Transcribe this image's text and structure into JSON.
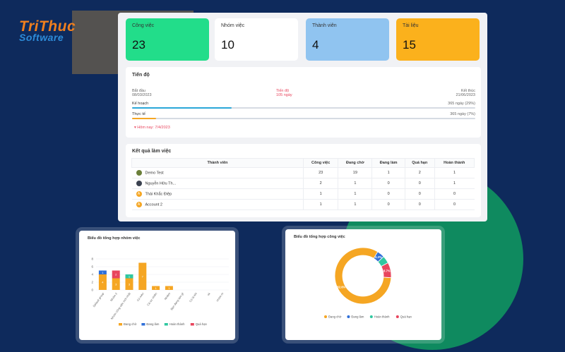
{
  "brand": {
    "line1": "TriThuc",
    "line2": "Software"
  },
  "stats": [
    {
      "label": "Công việc",
      "value": "23",
      "color": "#22dd8a"
    },
    {
      "label": "Nhóm việc",
      "value": "10",
      "color": "#ffffff"
    },
    {
      "label": "Thành viên",
      "value": "4",
      "color": "#90c4f0"
    },
    {
      "label": "Tài liệu",
      "value": "15",
      "color": "#fbb11c"
    }
  ],
  "progress": {
    "title": "Tiến độ",
    "start_label": "Bắt đầu",
    "start_date": "08/03/2023",
    "mid_label": "Tiến độ",
    "mid_value": "105 ngày",
    "end_label": "Kết thúc",
    "end_date": "21/06/2023",
    "plan_label": "Kế hoạch",
    "plan_value": "365 ngày (29%)",
    "plan_fraction": 0.29,
    "actual_label": "Thực tế",
    "actual_value": "365 ngày (7%)",
    "actual_fraction": 0.07,
    "today": "Hôm nay: 7/4/2023",
    "plan_color": "#2aa7d8",
    "actual_color": "#f5a623"
  },
  "results": {
    "title": "Kết quả làm việc",
    "headers": [
      "Thành viên",
      "Công việc",
      "Đang chờ",
      "Đang làm",
      "Quá hạn",
      "Hoàn thành"
    ],
    "rows": [
      {
        "name": "Demo Test",
        "cells": [
          "23",
          "19",
          "1",
          "2",
          "1"
        ]
      },
      {
        "name": "Nguyễn Hữu Th...",
        "cells": [
          "2",
          "1",
          "0",
          "0",
          "1"
        ]
      },
      {
        "name": "Thái Khắc Điệp",
        "cells": [
          "1",
          "1",
          "0",
          "0",
          "0"
        ]
      },
      {
        "name": "Account 2",
        "cells": [
          "1",
          "1",
          "0",
          "0",
          "0"
        ]
      }
    ]
  },
  "bar_chart_title": "Biểu đồ tổng hợp nhóm việc",
  "donut_chart_title": "Biểu đồ tổng hợp công việc",
  "chart_data": [
    {
      "type": "bar",
      "title": "Biểu đồ tổng hợp nhóm việc",
      "categories": [
        "Default group",
        "Nhóm 2",
        "Nhóm công việc mới nhất",
        "Cú mèo",
        "Cá sư nhiên",
        "Nhiệm",
        "Bạn đang làm gì",
        "Có là khi",
        "ok",
        "nhóm m"
      ],
      "series": [
        {
          "name": "Đang chờ",
          "color": "#f5a623",
          "values": [
            4,
            3,
            3,
            7,
            1,
            1,
            0,
            0,
            0,
            0
          ]
        },
        {
          "name": "Đang làm",
          "color": "#2f6fd8",
          "values": [
            1,
            0,
            0,
            0,
            0,
            0,
            0,
            0,
            0,
            0
          ]
        },
        {
          "name": "Hoàn thành",
          "color": "#2fc7a0",
          "values": [
            0,
            0,
            1,
            0,
            0,
            0,
            0,
            0,
            0,
            0
          ]
        },
        {
          "name": "Quá hạn",
          "color": "#e8455d",
          "values": [
            0,
            2,
            0,
            0,
            0,
            0,
            0,
            0,
            0,
            0
          ]
        }
      ],
      "ylim": [
        0,
        8
      ],
      "yticks": [
        "0",
        "2",
        "4",
        "6",
        "8"
      ],
      "legend": "bottom"
    },
    {
      "type": "pie",
      "title": "Biểu đồ tổng hợp công việc",
      "labels": [
        "Đang chờ",
        "Đang làm",
        "Hoàn thành",
        "Quá hạn"
      ],
      "values": [
        82.6,
        4.3,
        4.3,
        8.7
      ],
      "value_labels": [
        "82.6%",
        "4.3%",
        "",
        "8.7%"
      ],
      "colors": [
        "#f5a623",
        "#2f6fd8",
        "#2fc7a0",
        "#e8455d"
      ],
      "legend": "bottom"
    }
  ]
}
